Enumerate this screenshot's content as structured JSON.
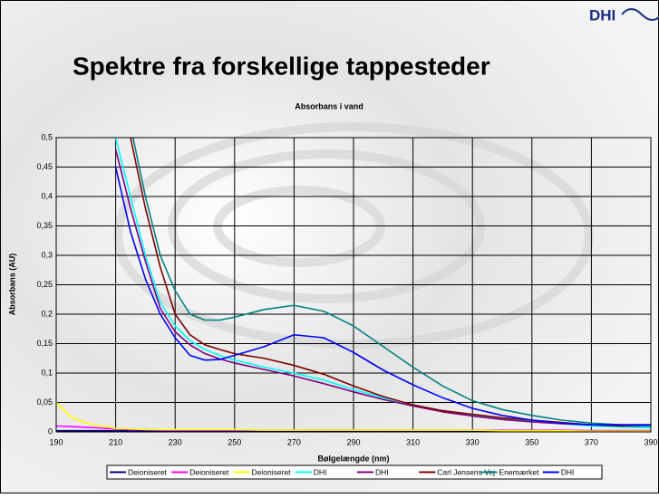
{
  "logo": "DHI",
  "heading": "Spektre fra forskellige tappesteder",
  "chart_data": {
    "type": "line",
    "title": "Absorbans i vand",
    "xlabel": "Bølgelængde (nm)",
    "ylabel": "Absorbans (AU)",
    "x": [
      190,
      195,
      200,
      210,
      215,
      220,
      225,
      230,
      235,
      240,
      245,
      250,
      260,
      270,
      280,
      290,
      300,
      310,
      320,
      330,
      340,
      350,
      360,
      370,
      380,
      390
    ],
    "xlim": [
      190,
      390
    ],
    "xticks": [
      190,
      210,
      230,
      250,
      270,
      290,
      310,
      330,
      350,
      370,
      390
    ],
    "ylim": [
      0,
      0.5
    ],
    "yticks": [
      0,
      {
        "value": 0.05,
        "label": "0,05"
      },
      {
        "value": 0.1,
        "label": "0,1"
      },
      {
        "value": 0.15,
        "label": "0,15"
      },
      {
        "value": 0.2,
        "label": "0,2"
      },
      {
        "value": 0.25,
        "label": "0,25"
      },
      {
        "value": 0.3,
        "label": "0,3"
      },
      {
        "value": 0.35,
        "label": "0,35"
      },
      {
        "value": 0.4,
        "label": "0,4"
      },
      {
        "value": 0.45,
        "label": "0,45"
      },
      {
        "value": 0.5,
        "label": "0,5"
      }
    ],
    "grid": true,
    "legend": "bottom",
    "series": [
      {
        "name": "Deioniseret",
        "color": "#000080",
        "values": [
          0.002,
          0.002,
          0.002,
          0.002,
          0.002,
          0.002,
          0.002,
          0.002,
          0.002,
          0.002,
          0.002,
          0.002,
          0.002,
          0.002,
          0.002,
          0.002,
          0.002,
          0.002,
          0.002,
          0.002,
          0.002,
          0.002,
          0.002,
          0.002,
          0.002,
          0.002
        ]
      },
      {
        "name": "Deioniseret",
        "color": "#ff00ff",
        "values": [
          0.01,
          0.009,
          0.008,
          0.005,
          0.004,
          0.004,
          0.003,
          0.003,
          0.003,
          0.003,
          0.003,
          0.003,
          0.003,
          0.003,
          0.003,
          0.003,
          0.003,
          0.003,
          0.003,
          0.003,
          0.003,
          0.003,
          0.003,
          0.002,
          0.002,
          0.002
        ]
      },
      {
        "name": "Deioniseret",
        "color": "#ffff00",
        "values": [
          0.05,
          0.025,
          0.015,
          0.006,
          0.005,
          0.004,
          0.004,
          0.004,
          0.004,
          0.004,
          0.004,
          0.004,
          0.003,
          0.003,
          0.003,
          0.003,
          0.003,
          0.003,
          0.003,
          0.003,
          0.002,
          0.002,
          0.002,
          0.001,
          0.001,
          0.001
        ]
      },
      {
        "name": "DHI",
        "color": "#00ffff",
        "values": [
          null,
          null,
          null,
          0.5,
          0.4,
          0.3,
          0.22,
          0.18,
          0.155,
          0.14,
          0.13,
          0.122,
          0.11,
          0.1,
          0.088,
          0.072,
          0.058,
          0.046,
          0.036,
          0.028,
          0.022,
          0.018,
          0.014,
          0.01,
          0.008,
          0.007
        ]
      },
      {
        "name": "DHI",
        "color": "#800080",
        "values": [
          null,
          null,
          null,
          0.48,
          0.38,
          0.29,
          0.21,
          0.17,
          0.148,
          0.133,
          0.124,
          0.117,
          0.106,
          0.095,
          0.082,
          0.068,
          0.055,
          0.044,
          0.034,
          0.027,
          0.021,
          0.017,
          0.014,
          0.012,
          0.012,
          0.012
        ]
      },
      {
        "name": "Carl Jensens Vej",
        "color": "#800000",
        "values": [
          null,
          null,
          null,
          null,
          0.5,
          0.38,
          0.28,
          0.2,
          0.165,
          0.148,
          0.14,
          0.133,
          0.125,
          0.113,
          0.098,
          0.078,
          0.06,
          0.046,
          0.036,
          0.03,
          0.024,
          0.02,
          0.016,
          0.012,
          0.01,
          0.01
        ]
      },
      {
        "name": "Enemærket",
        "color": "#008080",
        "values": [
          null,
          null,
          null,
          null,
          0.52,
          0.4,
          0.3,
          0.24,
          0.2,
          0.19,
          0.19,
          0.195,
          0.208,
          0.215,
          0.205,
          0.18,
          0.145,
          0.11,
          0.078,
          0.053,
          0.038,
          0.028,
          0.02,
          0.015,
          0.012,
          0.01
        ]
      },
      {
        "name": "DHI",
        "color": "#0000ff",
        "values": [
          null,
          null,
          null,
          0.45,
          0.34,
          0.26,
          0.2,
          0.16,
          0.13,
          0.122,
          0.123,
          0.13,
          0.145,
          0.165,
          0.16,
          0.135,
          0.105,
          0.08,
          0.058,
          0.04,
          0.028,
          0.02,
          0.015,
          0.012,
          0.012,
          0.012
        ]
      }
    ]
  }
}
